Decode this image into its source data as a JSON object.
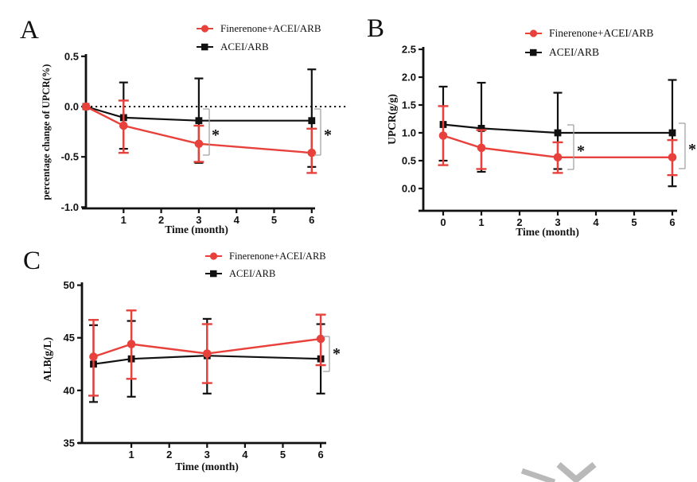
{
  "figure": {
    "description": "Three-panel clinical line chart figure comparing treatment groups over time",
    "panels": [
      "A",
      "B",
      "C"
    ],
    "watermark": "gray-chevron-bottom-right"
  },
  "colors": {
    "finerenone": "#e8413c",
    "acei": "#111111",
    "axis": "#111111",
    "bracket": "#a3a3a3",
    "watermark": "#b9b9b9",
    "background": "#ffffff"
  },
  "chart_data": [
    {
      "panel_label": "A",
      "type": "line",
      "xlabel": "Time (month)",
      "ylabel": "percentage change of UPCR(%)",
      "xlim": [
        0,
        6.2
      ],
      "ylim": [
        -1.0,
        0.5
      ],
      "x_tick_values": [
        1,
        2,
        3,
        4,
        5,
        6
      ],
      "x_tick_labels": [
        "1",
        "2",
        "3",
        "4",
        "5",
        "6"
      ],
      "y_tick_values": [
        0.5,
        0.0,
        -0.5,
        -1.0
      ],
      "y_tick_labels": [
        "0.5",
        "0.0",
        "-0.5",
        "-1.0"
      ],
      "zero_line_dotted": true,
      "legend": [
        "Finerenone+ACEI/ARB",
        "ACEI/ARB"
      ],
      "series": [
        {
          "name": "Finerenone+ACEI/ARB",
          "color_key": "finerenone",
          "marker": "circle",
          "x": [
            0,
            1,
            3,
            6
          ],
          "y": [
            0.0,
            -0.19,
            -0.37,
            -0.46
          ],
          "err_low": [
            0.0,
            -0.46,
            -0.55,
            -0.66
          ],
          "err_high": [
            0.0,
            0.06,
            -0.19,
            -0.22
          ]
        },
        {
          "name": "ACEI/ARB",
          "color_key": "acei",
          "marker": "square",
          "x": [
            0,
            1,
            3,
            6
          ],
          "y": [
            0.0,
            -0.11,
            -0.14,
            -0.14
          ],
          "err_low": [
            0.0,
            -0.42,
            -0.56,
            -0.6
          ],
          "err_high": [
            0.0,
            0.24,
            0.28,
            0.37
          ]
        }
      ],
      "significance": [
        {
          "at_x": 3,
          "label": "*"
        },
        {
          "at_x": 6,
          "label": "*"
        }
      ]
    },
    {
      "panel_label": "B",
      "type": "line",
      "xlabel": "Time (month)",
      "ylabel": "UPCR(g/g)",
      "xlim": [
        -0.3,
        6.2
      ],
      "ylim": [
        0.0,
        2.5
      ],
      "x_tick_values": [
        0,
        1,
        2,
        3,
        4,
        5,
        6
      ],
      "x_tick_labels": [
        "0",
        "1",
        "2",
        "3",
        "4",
        "5",
        "6"
      ],
      "y_tick_values": [
        2.5,
        2.0,
        1.5,
        1.0,
        0.5,
        0.0
      ],
      "y_tick_labels": [
        "2.5",
        "2.0",
        "1.5",
        "1.0",
        "0.5",
        "0.0"
      ],
      "zero_line_dotted": false,
      "legend": [
        "Finerenone+ACEI/ARB",
        "ACEI/ARB"
      ],
      "series": [
        {
          "name": "Finerenone+ACEI/ARB",
          "color_key": "finerenone",
          "marker": "circle",
          "x": [
            0,
            1,
            3,
            6
          ],
          "y": [
            0.95,
            0.73,
            0.56,
            0.56
          ],
          "err_low": [
            0.42,
            0.35,
            0.28,
            0.24
          ],
          "err_high": [
            1.48,
            1.05,
            0.83,
            0.87
          ]
        },
        {
          "name": "ACEI/ARB",
          "color_key": "acei",
          "marker": "square",
          "x": [
            0,
            1,
            3,
            6
          ],
          "y": [
            1.15,
            1.08,
            1.0,
            1.0
          ],
          "err_low": [
            0.5,
            0.3,
            0.35,
            0.04
          ],
          "err_high": [
            1.83,
            1.9,
            1.72,
            1.95
          ]
        }
      ],
      "significance": [
        {
          "at_x": 3,
          "label": "*"
        },
        {
          "at_x": 6,
          "label": "*"
        }
      ]
    },
    {
      "panel_label": "C",
      "type": "line",
      "xlabel": "Time (month)",
      "ylabel": "ALB(g/L)",
      "xlim": [
        0,
        6.2
      ],
      "ylim": [
        35,
        50
      ],
      "x_tick_values": [
        1,
        2,
        3,
        4,
        5,
        6
      ],
      "x_tick_labels": [
        "1",
        "2",
        "3",
        "4",
        "5",
        "6"
      ],
      "y_tick_values": [
        50,
        45,
        40,
        35
      ],
      "y_tick_labels": [
        "50",
        "45",
        "40",
        "35"
      ],
      "zero_line_dotted": false,
      "legend": [
        "Finerenone+ACEI/ARB",
        "ACEI/ARB"
      ],
      "series": [
        {
          "name": "Finerenone+ACEI/ARB",
          "color_key": "finerenone",
          "marker": "circle",
          "x": [
            0,
            1,
            3,
            6
          ],
          "y": [
            43.2,
            44.4,
            43.5,
            44.9
          ],
          "err_low": [
            39.5,
            41.1,
            40.7,
            42.4
          ],
          "err_high": [
            46.7,
            47.6,
            46.3,
            47.2
          ]
        },
        {
          "name": "ACEI/ARB",
          "color_key": "acei",
          "marker": "square",
          "x": [
            0,
            1,
            3,
            6
          ],
          "y": [
            42.5,
            43.0,
            43.3,
            43.0
          ],
          "err_low": [
            38.9,
            39.4,
            39.7,
            39.7
          ],
          "err_high": [
            46.2,
            46.6,
            46.8,
            46.3
          ]
        }
      ],
      "significance": [
        {
          "at_x": 6,
          "label": "*"
        }
      ]
    }
  ]
}
